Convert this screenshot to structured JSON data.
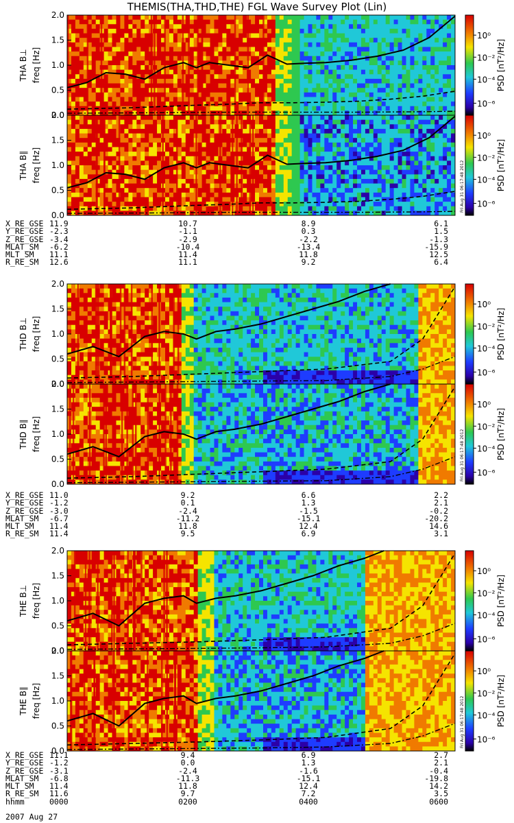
{
  "title": "THEMIS(THA,THD,THE) FGL Wave Survey Plot (Lin)",
  "colors": {
    "red": "#d80000",
    "orange": "#f07a00",
    "yellow": "#f5e400",
    "green": "#2ec850",
    "cyan": "#20c8d8",
    "blue": "#1e3cff",
    "darkblue": "#2b00a8",
    "black": "#000000"
  },
  "chart_data": [
    {
      "type": "heatmap",
      "panel": "THA B⊥",
      "ylabel_probe": "THA B⊥",
      "ylabel_unit": "freq [Hz]",
      "ylim": [
        0,
        2.0
      ],
      "yticks": [
        "0.0",
        "0.5",
        "1.0",
        "1.5",
        "2.0"
      ],
      "colorbar_label": "PSD [nT²/Hz]",
      "colorbar_ticks": [
        "10⁰",
        "10⁻²",
        "10⁻⁴",
        "10⁻⁶"
      ],
      "fce_line": {
        "x": [
          0,
          0.3,
          0.6,
          0.9,
          1.2,
          1.5,
          1.8,
          2.0,
          2.2,
          2.5,
          2.8,
          3.1,
          3.4,
          3.7,
          4.0,
          4.4,
          4.8,
          5.2,
          5.6,
          6.0
        ],
        "y": [
          0.55,
          0.65,
          0.85,
          0.82,
          0.72,
          0.95,
          1.05,
          0.95,
          1.05,
          1.0,
          0.95,
          1.2,
          1.02,
          1.04,
          1.05,
          1.1,
          1.18,
          1.3,
          1.55,
          1.98
        ]
      },
      "lh_line": {
        "x": [
          0,
          1.0,
          2.0,
          2.5,
          3.0,
          3.5,
          4.0,
          4.5,
          5.0,
          5.5,
          6.0
        ],
        "y": [
          0.12,
          0.15,
          0.2,
          0.22,
          0.25,
          0.25,
          0.26,
          0.28,
          0.32,
          0.38,
          0.48
        ]
      },
      "pc_line": {
        "x": [
          0,
          1.5,
          2.5,
          3.5,
          4.5,
          5.5,
          6.0
        ],
        "y": [
          0.04,
          0.05,
          0.06,
          0.06,
          0.06,
          0.07,
          0.08
        ]
      }
    },
    {
      "type": "heatmap",
      "panel": "THA B∥",
      "ylabel_probe": "THA B∥",
      "ylabel_unit": "freq [Hz]",
      "ylim": [
        0,
        2.0
      ],
      "yticks": [
        "0.0",
        "0.5",
        "1.0",
        "1.5",
        "2.0"
      ],
      "colorbar_label": "PSD [nT²/Hz]",
      "colorbar_ticks": [
        "10⁰",
        "10⁻²",
        "10⁻⁴",
        "10⁻⁶"
      ],
      "fce_line": {
        "x": [
          0,
          0.3,
          0.6,
          0.9,
          1.2,
          1.5,
          1.8,
          2.0,
          2.2,
          2.5,
          2.8,
          3.1,
          3.4,
          3.7,
          4.0,
          4.4,
          4.8,
          5.2,
          5.6,
          6.0
        ],
        "y": [
          0.55,
          0.65,
          0.85,
          0.82,
          0.72,
          0.95,
          1.05,
          0.95,
          1.05,
          1.0,
          0.95,
          1.2,
          1.02,
          1.04,
          1.05,
          1.1,
          1.18,
          1.3,
          1.55,
          1.98
        ]
      },
      "lh_line": {
        "x": [
          0,
          1.0,
          2.0,
          2.5,
          3.0,
          3.5,
          4.0,
          4.5,
          5.0,
          5.5,
          6.0
        ],
        "y": [
          0.12,
          0.15,
          0.2,
          0.22,
          0.25,
          0.25,
          0.26,
          0.28,
          0.32,
          0.38,
          0.48
        ]
      },
      "pc_line": {
        "x": [
          0,
          1.5,
          2.5,
          3.5,
          4.5,
          5.5,
          6.0
        ],
        "y": [
          0.04,
          0.05,
          0.06,
          0.06,
          0.06,
          0.07,
          0.08
        ]
      }
    },
    {
      "type": "heatmap",
      "panel": "THD B⊥",
      "ylabel_probe": "THD B⊥",
      "ylabel_unit": "freq [Hz]",
      "ylim": [
        0,
        2.0
      ],
      "yticks": [
        "0.0",
        "0.5",
        "1.0",
        "1.5",
        "2.0"
      ],
      "colorbar_label": "PSD [nT²/Hz]",
      "colorbar_ticks": [
        "10⁰",
        "10⁻²",
        "10⁻⁴",
        "10⁻⁶"
      ],
      "fce_line": {
        "x": [
          0,
          0.4,
          0.8,
          1.2,
          1.5,
          1.8,
          2.0,
          2.3,
          2.6,
          3.0,
          3.4,
          3.8,
          4.2,
          4.6,
          5.0
        ],
        "y": [
          0.6,
          0.75,
          0.55,
          0.95,
          1.05,
          1.0,
          0.9,
          1.05,
          1.1,
          1.2,
          1.35,
          1.5,
          1.65,
          1.85,
          2.0
        ]
      },
      "lh_line": {
        "x": [
          0,
          1.0,
          2.0,
          3.0,
          4.0,
          5.0,
          5.5,
          6.0
        ],
        "y": [
          0.12,
          0.15,
          0.2,
          0.25,
          0.3,
          0.45,
          0.9,
          1.95
        ]
      },
      "pc_line": {
        "x": [
          0,
          1.0,
          2.0,
          3.0,
          4.0,
          5.0,
          5.5,
          6.0
        ],
        "y": [
          0.03,
          0.04,
          0.05,
          0.06,
          0.07,
          0.15,
          0.3,
          0.55
        ]
      }
    },
    {
      "type": "heatmap",
      "panel": "THD B∥",
      "ylabel_probe": "THD B∥",
      "ylabel_unit": "freq [Hz]",
      "ylim": [
        0,
        2.0
      ],
      "yticks": [
        "0.0",
        "0.5",
        "1.0",
        "1.5",
        "2.0"
      ],
      "colorbar_label": "PSD [nT²/Hz]",
      "colorbar_ticks": [
        "10⁰",
        "10⁻²",
        "10⁻⁴",
        "10⁻⁶"
      ],
      "fce_line": {
        "x": [
          0,
          0.4,
          0.8,
          1.2,
          1.5,
          1.8,
          2.0,
          2.3,
          2.6,
          3.0,
          3.4,
          3.8,
          4.2,
          4.6,
          5.0
        ],
        "y": [
          0.6,
          0.75,
          0.55,
          0.95,
          1.05,
          1.0,
          0.9,
          1.05,
          1.1,
          1.2,
          1.35,
          1.5,
          1.65,
          1.85,
          2.0
        ]
      },
      "lh_line": {
        "x": [
          0,
          1.0,
          2.0,
          3.0,
          4.0,
          5.0,
          5.5,
          6.0
        ],
        "y": [
          0.12,
          0.15,
          0.2,
          0.25,
          0.3,
          0.45,
          0.9,
          1.95
        ]
      },
      "pc_line": {
        "x": [
          0,
          1.0,
          2.0,
          3.0,
          4.0,
          5.0,
          5.5,
          6.0
        ],
        "y": [
          0.03,
          0.04,
          0.05,
          0.06,
          0.07,
          0.15,
          0.3,
          0.55
        ]
      }
    },
    {
      "type": "heatmap",
      "panel": "THE B⊥",
      "ylabel_probe": "THE B⊥",
      "ylabel_unit": "freq [Hz]",
      "ylim": [
        0,
        2.0
      ],
      "yticks": [
        "0.0",
        "0.5",
        "1.0",
        "1.5",
        "2.0"
      ],
      "colorbar_label": "PSD [nT²/Hz]",
      "colorbar_ticks": [
        "10⁰",
        "10⁻²",
        "10⁻⁴",
        "10⁻⁶"
      ],
      "fce_line": {
        "x": [
          0,
          0.4,
          0.8,
          1.2,
          1.5,
          1.8,
          2.0,
          2.3,
          2.6,
          3.0,
          3.4,
          3.8,
          4.2,
          4.6,
          4.9
        ],
        "y": [
          0.6,
          0.75,
          0.5,
          0.95,
          1.05,
          1.1,
          0.95,
          1.05,
          1.1,
          1.2,
          1.35,
          1.5,
          1.7,
          1.85,
          2.0
        ]
      },
      "lh_line": {
        "x": [
          0,
          1.0,
          2.0,
          3.0,
          4.0,
          5.0,
          5.5,
          6.0
        ],
        "y": [
          0.12,
          0.15,
          0.18,
          0.22,
          0.27,
          0.45,
          0.9,
          1.95
        ]
      },
      "pc_line": {
        "x": [
          0,
          1.0,
          2.0,
          3.0,
          4.0,
          5.0,
          5.5,
          6.0
        ],
        "y": [
          0.03,
          0.04,
          0.05,
          0.06,
          0.08,
          0.15,
          0.3,
          0.55
        ]
      }
    },
    {
      "type": "heatmap",
      "panel": "THE B∥",
      "ylabel_probe": "THE B∥",
      "ylabel_unit": "freq [Hz]",
      "ylim": [
        0,
        2.0
      ],
      "yticks": [
        "0.0",
        "0.5",
        "1.0",
        "1.5",
        "2.0"
      ],
      "colorbar_label": "PSD [nT²/Hz]",
      "colorbar_ticks": [
        "10⁰",
        "10⁻²",
        "10⁻⁴",
        "10⁻⁶"
      ],
      "fce_line": {
        "x": [
          0,
          0.4,
          0.8,
          1.2,
          1.5,
          1.8,
          2.0,
          2.3,
          2.6,
          3.0,
          3.4,
          3.8,
          4.2,
          4.6,
          4.9
        ],
        "y": [
          0.6,
          0.75,
          0.5,
          0.95,
          1.05,
          1.1,
          0.95,
          1.05,
          1.1,
          1.2,
          1.35,
          1.5,
          1.7,
          1.85,
          2.0
        ]
      },
      "lh_line": {
        "x": [
          0,
          1.0,
          2.0,
          3.0,
          4.0,
          5.0,
          5.5,
          6.0
        ],
        "y": [
          0.12,
          0.15,
          0.18,
          0.22,
          0.27,
          0.45,
          0.9,
          1.95
        ]
      },
      "pc_line": {
        "x": [
          0,
          1.0,
          2.0,
          3.0,
          4.0,
          5.0,
          5.5,
          6.0
        ],
        "y": [
          0.03,
          0.04,
          0.05,
          0.06,
          0.08,
          0.15,
          0.3,
          0.55
        ]
      }
    }
  ],
  "stamps": [
    "Fri Aug 31 06:17:48 2012",
    "Fri Aug 31 06:17:48 2012",
    "Fri Aug 31 06:17:48 2012"
  ],
  "tables": [
    {
      "rows": [
        {
          "label": "X_RE_GSE",
          "values": [
            "11.9",
            "10.7",
            "8.9",
            "6.1"
          ]
        },
        {
          "label": "Y_RE_GSE",
          "values": [
            "-2.3",
            "-1.1",
            "0.3",
            "1.5"
          ]
        },
        {
          "label": "Z_RE_GSE",
          "values": [
            "-3.4",
            "-2.9",
            "-2.2",
            "-1.3"
          ]
        },
        {
          "label": "MLAT_SM",
          "values": [
            "-6.2",
            "-10.4",
            "-13.4",
            "-15.9"
          ]
        },
        {
          "label": "MLT_SM",
          "values": [
            "11.1",
            "11.4",
            "11.8",
            "12.5"
          ]
        },
        {
          "label": "R_RE_SM",
          "values": [
            "12.6",
            "11.1",
            "9.2",
            "6.4"
          ]
        }
      ]
    },
    {
      "rows": [
        {
          "label": "X_RE_GSE",
          "values": [
            "11.0",
            "9.2",
            "6.6",
            "2.2"
          ]
        },
        {
          "label": "Y_RE_GSE",
          "values": [
            "-1.2",
            "0.1",
            "1.3",
            "2.1"
          ]
        },
        {
          "label": "Z_RE_GSE",
          "values": [
            "-3.0",
            "-2.4",
            "-1.5",
            "-0.2"
          ]
        },
        {
          "label": "MLAT_SM",
          "values": [
            "-6.7",
            "-11.2",
            "-15.1",
            "-20.2"
          ]
        },
        {
          "label": "MLT_SM",
          "values": [
            "11.4",
            "11.8",
            "12.4",
            "14.6"
          ]
        },
        {
          "label": "R_RE_SM",
          "values": [
            "11.4",
            "9.5",
            "6.9",
            "3.1"
          ]
        }
      ]
    },
    {
      "rows": [
        {
          "label": "X_RE_GSE",
          "values": [
            "11.1",
            "9.4",
            "6.9",
            "2.7"
          ]
        },
        {
          "label": "Y_RE_GSE",
          "values": [
            "-1.2",
            "0.0",
            "1.3",
            "2.1"
          ]
        },
        {
          "label": "Z_RE_GSE",
          "values": [
            "-3.1",
            "-2.4",
            "-1.6",
            "-0.4"
          ]
        },
        {
          "label": "MLAT_SM",
          "values": [
            "-6.8",
            "-11.3",
            "-15.1",
            "-19.8"
          ]
        },
        {
          "label": "MLT_SM",
          "values": [
            "11.4",
            "11.8",
            "12.4",
            "14.2"
          ]
        },
        {
          "label": "R_RE_SM",
          "values": [
            "11.6",
            "9.7",
            "7.2",
            "3.5"
          ]
        },
        {
          "label": "hhmm",
          "values": [
            "0000",
            "0200",
            "0400",
            "0600"
          ]
        }
      ]
    }
  ],
  "date_label": "2007 Aug 27"
}
